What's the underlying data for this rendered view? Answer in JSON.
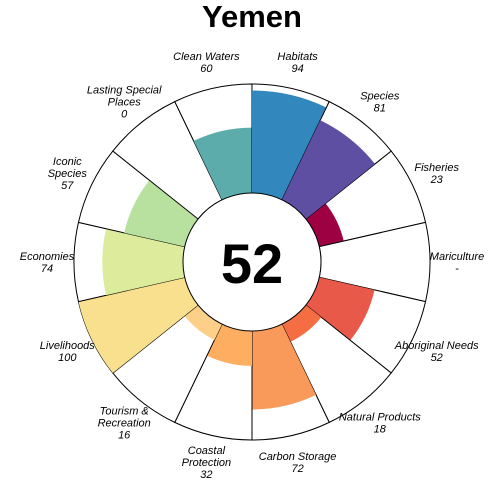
{
  "chart_data": {
    "type": "flower",
    "title": "Yemen",
    "center_score": "52",
    "petals": [
      {
        "name": "Fisheries",
        "label_lines": [
          "Fisheries"
        ],
        "value_text": "23",
        "score": 23,
        "color": "#9E0142"
      },
      {
        "name": "Mariculture",
        "label_lines": [
          "Mariculture"
        ],
        "value_text": "-",
        "score": null,
        "color": "#D53E4F"
      },
      {
        "name": "Aboriginal Needs",
        "label_lines": [
          "Aboriginal Needs"
        ],
        "value_text": "52",
        "score": 52,
        "color": "#E8594A"
      },
      {
        "name": "Natural Products",
        "label_lines": [
          "Natural Products"
        ],
        "value_text": "18",
        "score": 18,
        "color": "#F46D43"
      },
      {
        "name": "Carbon Storage",
        "label_lines": [
          "Carbon Storage"
        ],
        "value_text": "72",
        "score": 72,
        "color": "#F99A5A"
      },
      {
        "name": "Coastal Protection",
        "label_lines": [
          "Coastal",
          "Protection"
        ],
        "value_text": "32",
        "score": 32,
        "color": "#FDAE61"
      },
      {
        "name": "Tourism & Recreation",
        "label_lines": [
          "Tourism &",
          "Recreation"
        ],
        "value_text": "16",
        "score": 16,
        "color": "#FDD08A"
      },
      {
        "name": "Livelihoods",
        "label_lines": [
          "Livelihoods"
        ],
        "value_text": "100",
        "score": 100,
        "color": "#F9E08E"
      },
      {
        "name": "Economies",
        "label_lines": [
          "Economies"
        ],
        "value_text": "74",
        "score": 74,
        "color": "#DCEC9C"
      },
      {
        "name": "Iconic Species",
        "label_lines": [
          "Iconic",
          "Species"
        ],
        "value_text": "57",
        "score": 57,
        "color": "#B8E1A0"
      },
      {
        "name": "Lasting Special Places",
        "label_lines": [
          "Lasting Special",
          "Places"
        ],
        "value_text": "0",
        "score": 0,
        "color": "#9ED7A4"
      },
      {
        "name": "Clean Waters",
        "label_lines": [
          "Clean Waters"
        ],
        "value_text": "60",
        "score": 60,
        "color": "#5BACAA"
      },
      {
        "name": "Habitats",
        "label_lines": [
          "Habitats"
        ],
        "value_text": "94",
        "score": 94,
        "color": "#3288BD"
      },
      {
        "name": "Species",
        "label_lines": [
          "Species"
        ],
        "value_text": "81",
        "score": 81,
        "color": "#5E4FA2"
      }
    ]
  }
}
